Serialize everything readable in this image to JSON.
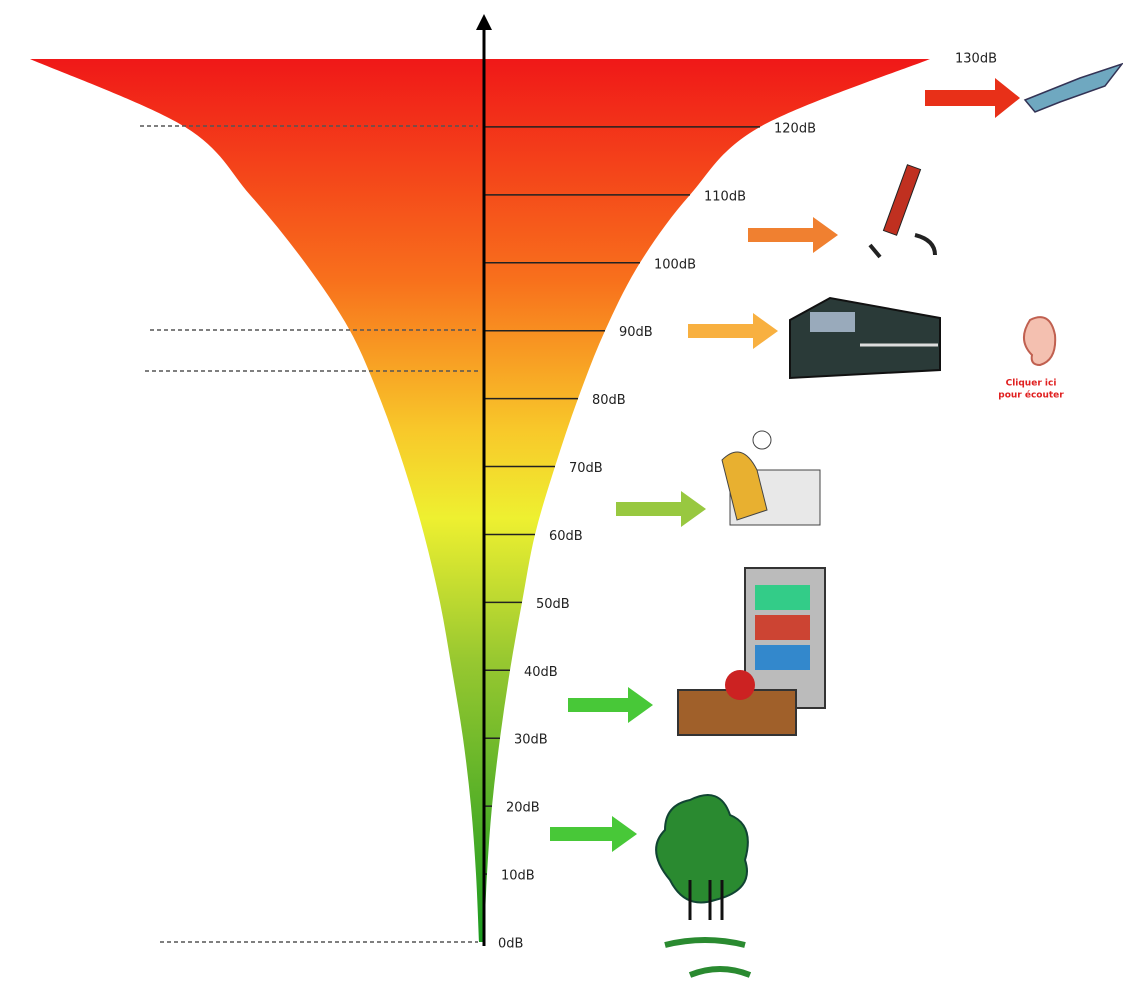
{
  "scale": {
    "labels": [
      "0dB",
      "10dB",
      "20dB",
      "30dB",
      "40dB",
      "50dB",
      "60dB",
      "70dB",
      "80dB",
      "90dB",
      "100dB",
      "110dB",
      "120dB",
      "130dB"
    ]
  },
  "ear": {
    "caption": [
      "Cliquer ici",
      "pour écouter"
    ]
  }
}
